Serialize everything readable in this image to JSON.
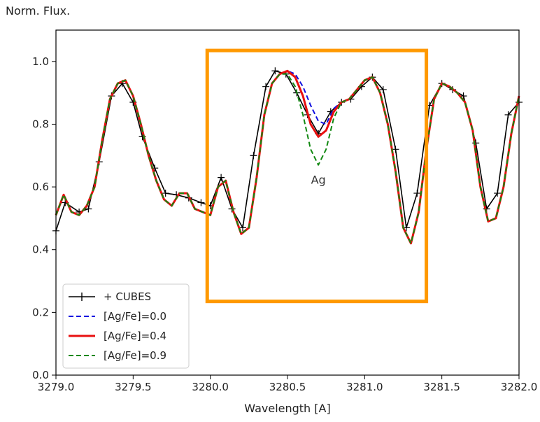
{
  "chart_data": {
    "type": "line",
    "title": "",
    "ylabel": "Norm. Flux.",
    "xlabel": "Wavelength [A]",
    "xlim": [
      3279.0,
      3282.0
    ],
    "ylim": [
      0.0,
      1.1
    ],
    "xticks": [
      "3279.0",
      "3279.5",
      "3280.0",
      "3280.5",
      "3281.0",
      "3281.5",
      "3282.0"
    ],
    "yticks": [
      "0.0",
      "0.2",
      "0.4",
      "0.6",
      "0.8",
      "1.0"
    ],
    "grid": false,
    "legend_position": "lower-left",
    "annotations": [
      {
        "text": "Ag",
        "x": 3280.7,
        "y": 0.61
      }
    ],
    "highlight_box": {
      "x0": 3279.98,
      "x1": 3281.4,
      "y0": 0.235,
      "y1": 1.035,
      "color": "#FF9900"
    },
    "series": [
      {
        "name": "+ CUBES",
        "color": "#000000",
        "style": "solid-marker",
        "x": [
          3279.0,
          3279.06,
          3279.15,
          3279.21,
          3279.28,
          3279.36,
          3279.43,
          3279.5,
          3279.56,
          3279.64,
          3279.71,
          3279.78,
          3279.86,
          3279.94,
          3280.0,
          3280.07,
          3280.14,
          3280.21,
          3280.28,
          3280.36,
          3280.42,
          3280.49,
          3280.56,
          3280.63,
          3280.7,
          3280.78,
          3280.85,
          3280.91,
          3280.98,
          3281.05,
          3281.12,
          3281.2,
          3281.27,
          3281.34,
          3281.42,
          3281.5,
          3281.57,
          3281.64,
          3281.72,
          3281.79,
          3281.86,
          3281.93,
          3282.0
        ],
        "y": [
          0.46,
          0.55,
          0.52,
          0.53,
          0.68,
          0.89,
          0.93,
          0.87,
          0.76,
          0.66,
          0.58,
          0.575,
          0.565,
          0.55,
          0.54,
          0.63,
          0.53,
          0.47,
          0.7,
          0.92,
          0.97,
          0.96,
          0.9,
          0.83,
          0.77,
          0.84,
          0.87,
          0.88,
          0.92,
          0.95,
          0.91,
          0.72,
          0.47,
          0.58,
          0.86,
          0.93,
          0.91,
          0.89,
          0.74,
          0.53,
          0.58,
          0.83,
          0.87
        ]
      },
      {
        "name": "[Ag/Fe]=0.0",
        "color": "#1010e0",
        "style": "dashed",
        "x": [
          3279.0,
          3279.05,
          3279.1,
          3279.15,
          3279.2,
          3279.25,
          3279.3,
          3279.35,
          3279.4,
          3279.45,
          3279.5,
          3279.55,
          3279.6,
          3279.65,
          3279.7,
          3279.75,
          3279.8,
          3279.85,
          3279.9,
          3279.95,
          3280.0,
          3280.05,
          3280.1,
          3280.15,
          3280.2,
          3280.25,
          3280.3,
          3280.35,
          3280.4,
          3280.45,
          3280.5,
          3280.55,
          3280.6,
          3280.65,
          3280.7,
          3280.75,
          3280.8,
          3280.85,
          3280.9,
          3280.95,
          3281.0,
          3281.05,
          3281.1,
          3281.15,
          3281.2,
          3281.25,
          3281.3,
          3281.35,
          3281.4,
          3281.45,
          3281.5,
          3281.55,
          3281.6,
          3281.65,
          3281.7,
          3281.75,
          3281.8,
          3281.85,
          3281.9,
          3281.95,
          3282.0
        ],
        "y": [
          0.51,
          0.575,
          0.52,
          0.51,
          0.54,
          0.6,
          0.75,
          0.88,
          0.93,
          0.94,
          0.89,
          0.8,
          0.7,
          0.62,
          0.56,
          0.54,
          0.58,
          0.58,
          0.53,
          0.52,
          0.51,
          0.6,
          0.62,
          0.52,
          0.45,
          0.47,
          0.63,
          0.83,
          0.93,
          0.96,
          0.97,
          0.96,
          0.92,
          0.86,
          0.81,
          0.8,
          0.85,
          0.87,
          0.88,
          0.91,
          0.94,
          0.95,
          0.9,
          0.8,
          0.65,
          0.47,
          0.42,
          0.52,
          0.72,
          0.88,
          0.93,
          0.92,
          0.9,
          0.87,
          0.78,
          0.6,
          0.49,
          0.5,
          0.6,
          0.77,
          0.89
        ]
      },
      {
        "name": "[Ag/Fe]=0.4",
        "color": "#e81010",
        "style": "solid",
        "x": [
          3279.0,
          3279.05,
          3279.1,
          3279.15,
          3279.2,
          3279.25,
          3279.3,
          3279.35,
          3279.4,
          3279.45,
          3279.5,
          3279.55,
          3279.6,
          3279.65,
          3279.7,
          3279.75,
          3279.8,
          3279.85,
          3279.9,
          3279.95,
          3280.0,
          3280.05,
          3280.1,
          3280.15,
          3280.2,
          3280.25,
          3280.3,
          3280.35,
          3280.4,
          3280.45,
          3280.5,
          3280.55,
          3280.6,
          3280.65,
          3280.7,
          3280.75,
          3280.8,
          3280.85,
          3280.9,
          3280.95,
          3281.0,
          3281.05,
          3281.1,
          3281.15,
          3281.2,
          3281.25,
          3281.3,
          3281.35,
          3281.4,
          3281.45,
          3281.5,
          3281.55,
          3281.6,
          3281.65,
          3281.7,
          3281.75,
          3281.8,
          3281.85,
          3281.9,
          3281.95,
          3282.0
        ],
        "y": [
          0.51,
          0.575,
          0.52,
          0.51,
          0.54,
          0.6,
          0.75,
          0.88,
          0.93,
          0.94,
          0.89,
          0.8,
          0.7,
          0.62,
          0.56,
          0.54,
          0.58,
          0.58,
          0.53,
          0.52,
          0.51,
          0.6,
          0.62,
          0.52,
          0.45,
          0.47,
          0.63,
          0.83,
          0.93,
          0.96,
          0.97,
          0.95,
          0.89,
          0.8,
          0.76,
          0.78,
          0.84,
          0.87,
          0.88,
          0.91,
          0.94,
          0.95,
          0.9,
          0.8,
          0.65,
          0.47,
          0.42,
          0.52,
          0.72,
          0.88,
          0.93,
          0.92,
          0.9,
          0.87,
          0.78,
          0.6,
          0.49,
          0.5,
          0.6,
          0.77,
          0.89
        ]
      },
      {
        "name": "[Ag/Fe]=0.9",
        "color": "#118811",
        "style": "dashed",
        "x": [
          3279.0,
          3279.05,
          3279.1,
          3279.15,
          3279.2,
          3279.25,
          3279.3,
          3279.35,
          3279.4,
          3279.45,
          3279.5,
          3279.55,
          3279.6,
          3279.65,
          3279.7,
          3279.75,
          3279.8,
          3279.85,
          3279.9,
          3279.95,
          3280.0,
          3280.05,
          3280.1,
          3280.15,
          3280.2,
          3280.25,
          3280.3,
          3280.35,
          3280.4,
          3280.45,
          3280.5,
          3280.55,
          3280.6,
          3280.65,
          3280.7,
          3280.75,
          3280.8,
          3280.85,
          3280.9,
          3280.95,
          3281.0,
          3281.05,
          3281.1,
          3281.15,
          3281.2,
          3281.25,
          3281.3,
          3281.35,
          3281.4,
          3281.45,
          3281.5,
          3281.55,
          3281.6,
          3281.65,
          3281.7,
          3281.75,
          3281.8,
          3281.85,
          3281.9,
          3281.95,
          3282.0
        ],
        "y": [
          0.51,
          0.575,
          0.52,
          0.51,
          0.54,
          0.6,
          0.75,
          0.88,
          0.93,
          0.94,
          0.89,
          0.8,
          0.7,
          0.62,
          0.56,
          0.54,
          0.58,
          0.58,
          0.53,
          0.52,
          0.51,
          0.6,
          0.62,
          0.52,
          0.45,
          0.47,
          0.63,
          0.83,
          0.93,
          0.96,
          0.96,
          0.92,
          0.83,
          0.72,
          0.67,
          0.72,
          0.82,
          0.87,
          0.88,
          0.91,
          0.94,
          0.95,
          0.9,
          0.8,
          0.65,
          0.47,
          0.42,
          0.52,
          0.72,
          0.88,
          0.93,
          0.92,
          0.9,
          0.87,
          0.78,
          0.6,
          0.49,
          0.5,
          0.6,
          0.77,
          0.89
        ]
      }
    ]
  }
}
